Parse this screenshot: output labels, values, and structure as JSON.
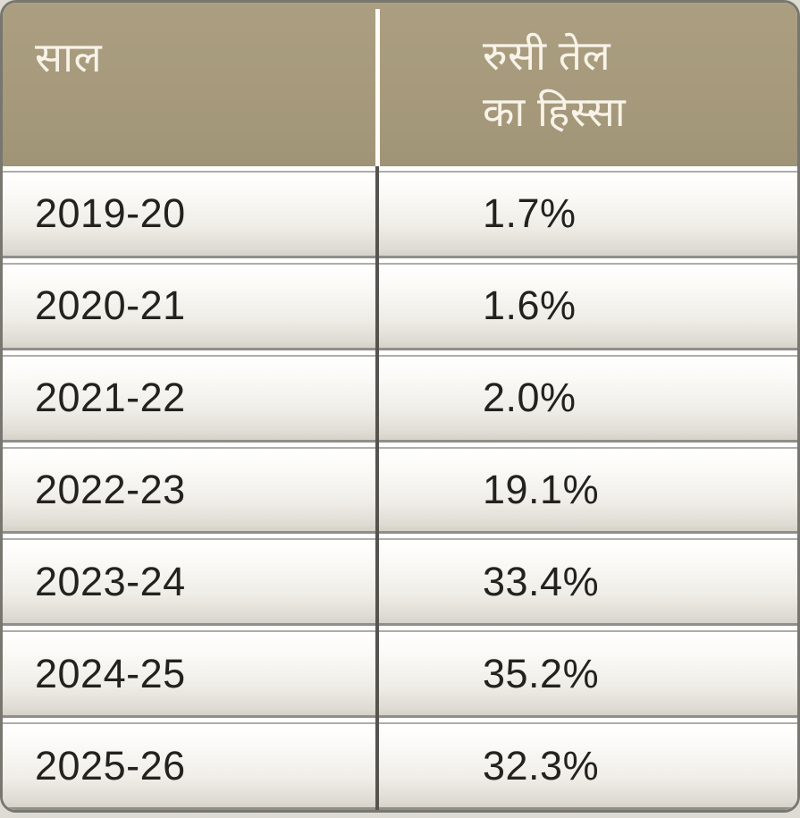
{
  "table": {
    "header": {
      "year_label": "साल",
      "share_label": "रुसी तेल\nका हिस्सा"
    },
    "rows": [
      {
        "year": "2019-20",
        "share": "1.7%"
      },
      {
        "year": "2020-21",
        "share": "1.6%"
      },
      {
        "year": "2021-22",
        "share": "2.0%"
      },
      {
        "year": "2022-23",
        "share": "19.1%"
      },
      {
        "year": "2023-24",
        "share": "33.4%"
      },
      {
        "year": "2024-25",
        "share": "35.2%"
      },
      {
        "year": "2025-26",
        "share": "32.3%"
      }
    ]
  },
  "colors": {
    "header_background": "#a79a7c",
    "header_text": "#f8f3e8",
    "row_text": "#23221e",
    "row_gradient_top": "#ffffff",
    "row_gradient_bottom": "#d5d2ca",
    "outer_border": "#77766f",
    "column_divider_body": "#55534d",
    "column_divider_header": "#fdfbf4"
  },
  "chart_data": {
    "type": "table",
    "title": "रुसी तेल का हिस्सा (साल के अनुसार)",
    "columns": [
      "साल",
      "रुसी तेल का हिस्सा"
    ],
    "categories": [
      "2019-20",
      "2020-21",
      "2021-22",
      "2022-23",
      "2023-24",
      "2024-25",
      "2025-26"
    ],
    "values": [
      1.7,
      1.6,
      2.0,
      19.1,
      33.4,
      35.2,
      32.3
    ],
    "value_unit": "%"
  }
}
